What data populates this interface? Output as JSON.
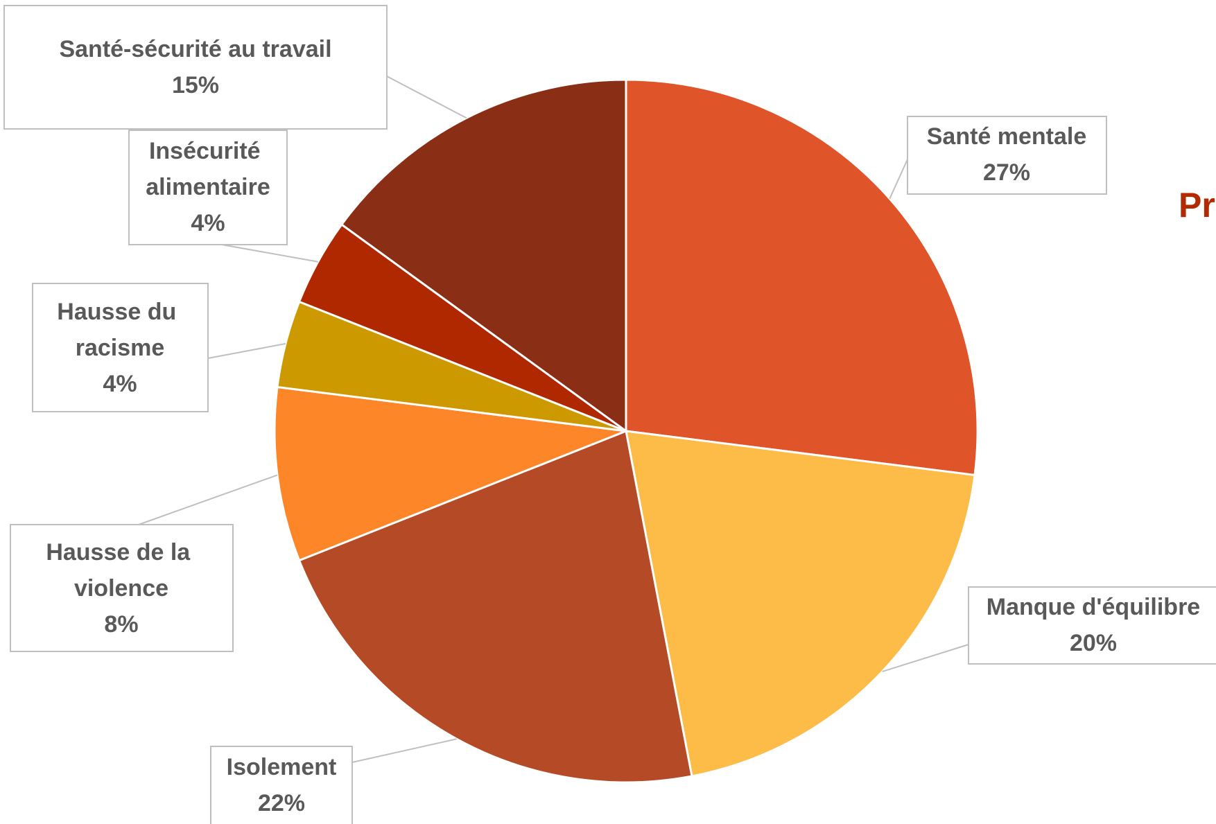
{
  "chart_data": {
    "type": "pie",
    "title": "Pr",
    "categories": [
      "Santé mentale",
      "Manque d'équilibre",
      "Isolement",
      "Hausse de la violence",
      "Hausse du racisme",
      "Insécurité alimentaire",
      "Santé-sécurité au travail"
    ],
    "values": [
      27,
      20,
      22,
      8,
      4,
      4,
      15
    ],
    "value_labels": [
      "27%",
      "20%",
      "22%",
      "8%",
      "4%",
      "4%",
      "15%"
    ],
    "colors": [
      "#E0542A",
      "#FDBB48",
      "#B54A27",
      "#FD8629",
      "#CC9A00",
      "#B02800",
      "#8A2E15"
    ]
  }
}
